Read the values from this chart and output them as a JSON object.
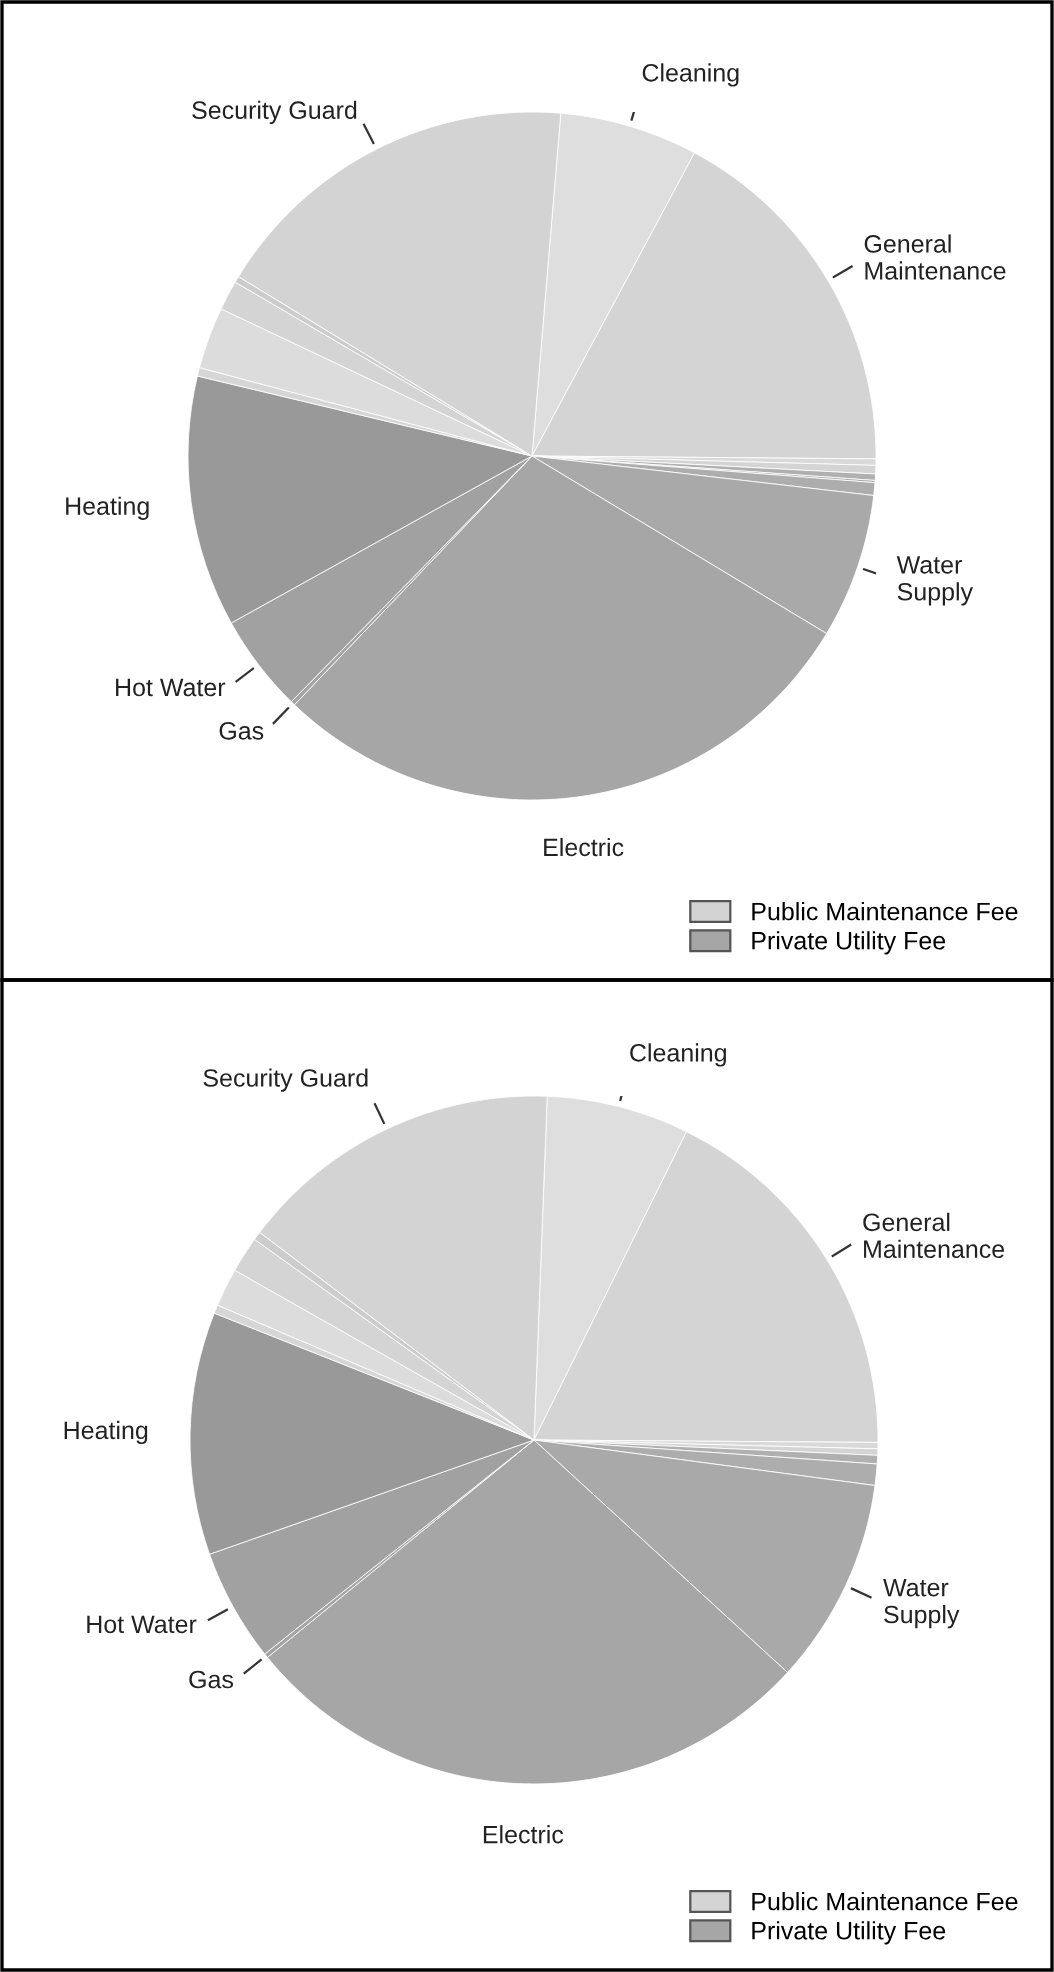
{
  "chart_data": [
    {
      "type": "pie",
      "categories": [
        "Cleaning",
        "General\nMaintenance",
        null,
        null,
        null,
        null,
        null,
        "Water\nSupply",
        "Electric",
        "Gas",
        "Hot Water",
        "Heating",
        null,
        null,
        null,
        null,
        "Security Guard"
      ],
      "values": [
        6.5,
        17.3,
        0.3,
        0.4,
        0.3,
        0.1,
        0.6,
        6.8,
        28.5,
        0.2,
        4.6,
        11.8,
        0.4,
        2.9,
        1.4,
        0.3,
        17.6
      ],
      "colors": [
        "#dedede",
        "#d4d4d4",
        "#d9d9d9",
        "#d4d4d4",
        "#b0b0b0",
        "#a8a8a8",
        "#adadad",
        "#a9a9a9",
        "#a6a6a6",
        "#a3a3a3",
        "#a1a1a1",
        "#999999",
        "#d6d6d6",
        "#dcdcdc",
        "#d4d4d4",
        "#cccccc",
        "#d3d3d3"
      ],
      "annotations": [
        "Public Maintenance Fee",
        "Private Utility Fee"
      ]
    },
    {
      "type": "pie",
      "categories": [
        "Cleaning",
        "General\nMaintenance",
        null,
        null,
        null,
        null,
        "Water\nSupply",
        "Electric",
        "Gas",
        "Hot Water",
        "Heating",
        null,
        null,
        null,
        null,
        "Security Guard"
      ],
      "values": [
        6.7,
        17.8,
        0.3,
        0.3,
        0.4,
        1.0,
        9.7,
        27.3,
        0.2,
        5.3,
        11.4,
        0.4,
        1.8,
        1.7,
        0.4,
        15.3
      ],
      "colors": [
        "#dedede",
        "#d4d4d4",
        "#d9d9d9",
        "#d4d4d4",
        "#b0b0b0",
        "#adadad",
        "#a9a9a9",
        "#a6a6a6",
        "#a3a3a3",
        "#a1a1a1",
        "#999999",
        "#d6d6d6",
        "#dcdcdc",
        "#d4d4d4",
        "#cccccc",
        "#d3d3d3"
      ],
      "annotations": [
        "Public Maintenance Fee",
        "Private Utility Fee"
      ]
    }
  ]
}
